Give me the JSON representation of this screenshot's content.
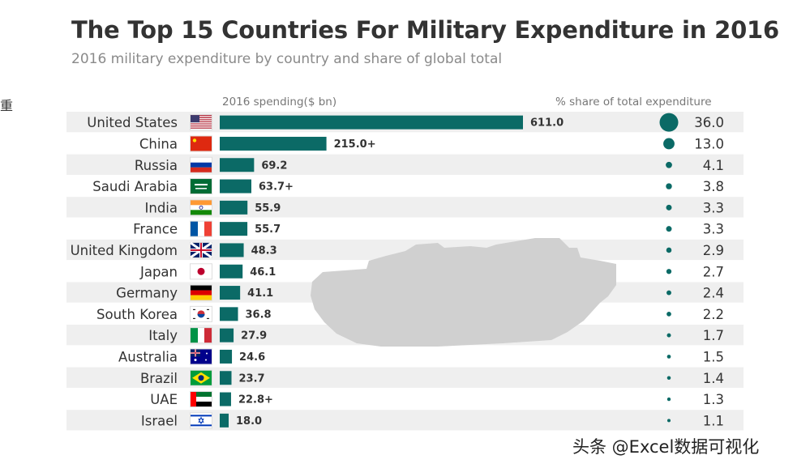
{
  "title": "The Top 15 Countries For Military Expenditure in 2016",
  "subtitle": "2016 military expenditure by country and share of global total",
  "edge_text": "重",
  "watermark": "头条 @Excel数据可视化",
  "colors": {
    "bar": "#0b6a66",
    "dot": "#0b6a66",
    "row_band": "#efefef",
    "silhouette": "#d0d0d0"
  },
  "chart_data": {
    "type": "bar",
    "orientation": "horizontal",
    "spending_header": "2016 spending($ bn)",
    "share_header": "% share of total expenditure",
    "categories": [
      "United States",
      "China",
      "Russia",
      "Saudi Arabia",
      "India",
      "France",
      "United Kingdom",
      "Japan",
      "Germany",
      "South Korea",
      "Italy",
      "Australia",
      "Brazil",
      "UAE",
      "Israel"
    ],
    "flag_icons": [
      "flag-us-icon",
      "flag-cn-icon",
      "flag-ru-icon",
      "flag-sa-icon",
      "flag-in-icon",
      "flag-fr-icon",
      "flag-uk-icon",
      "flag-jp-icon",
      "flag-de-icon",
      "flag-kr-icon",
      "flag-it-icon",
      "flag-au-icon",
      "flag-br-icon",
      "flag-ae-icon",
      "flag-il-icon"
    ],
    "values": [
      611.0,
      215.0,
      69.2,
      63.7,
      55.9,
      55.7,
      48.3,
      46.1,
      41.1,
      36.8,
      27.9,
      24.6,
      23.7,
      22.8,
      18.0
    ],
    "value_labels": [
      "611.0",
      "215.0+",
      "69.2",
      "63.7+",
      "55.9",
      "55.7",
      "48.3",
      "46.1",
      "41.1",
      "36.8",
      "27.9",
      "24.6",
      "23.7",
      "22.8+",
      "18.0"
    ],
    "shares": [
      36.0,
      13.0,
      4.1,
      3.8,
      3.3,
      3.3,
      2.9,
      2.7,
      2.4,
      2.2,
      1.7,
      1.5,
      1.4,
      1.3,
      1.1
    ],
    "share_labels": [
      "36.0",
      "13.0",
      "4.1",
      "3.8",
      "3.3",
      "3.3",
      "2.9",
      "2.7",
      "2.4",
      "2.2",
      "1.7",
      "1.5",
      "1.4",
      "1.3",
      "1.1"
    ],
    "xlim": [
      0,
      611.0
    ],
    "grid": false,
    "background_image": "tank-silhouette-icon"
  }
}
